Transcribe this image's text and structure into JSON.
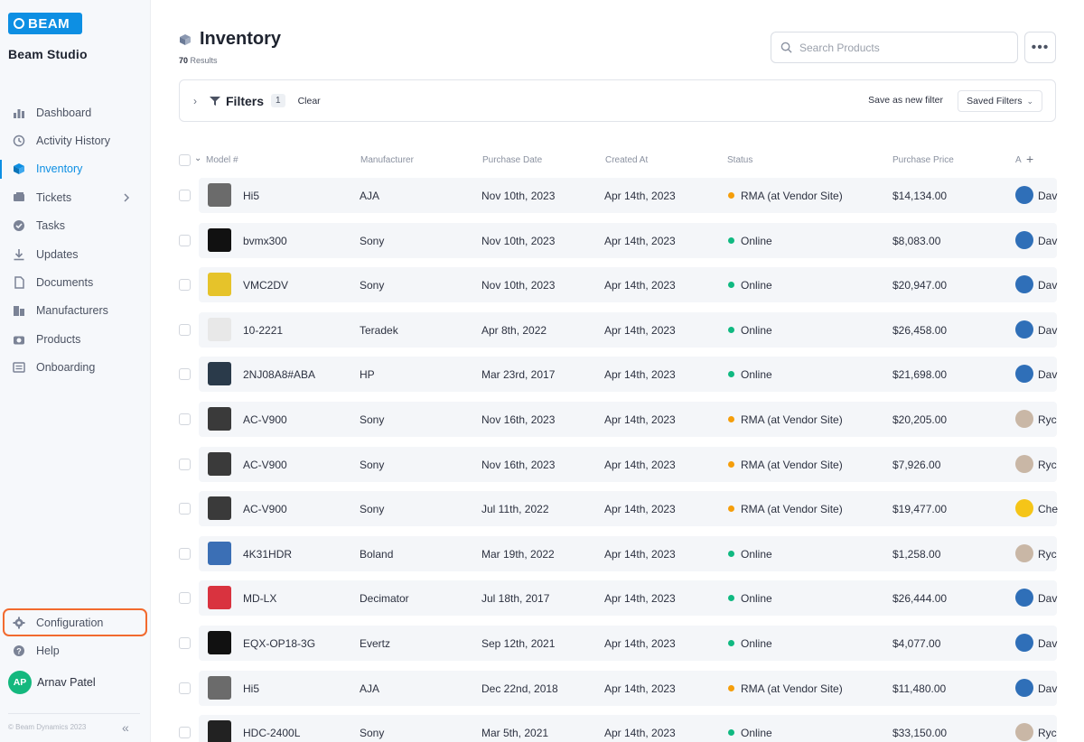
{
  "app": {
    "logo_text": "BEAM",
    "workspace": "Beam Studio",
    "copyright": "© Beam Dynamics 2023"
  },
  "sidebar": {
    "items": [
      {
        "label": "Dashboard",
        "icon": "bar-chart-icon"
      },
      {
        "label": "Activity History",
        "icon": "history-icon"
      },
      {
        "label": "Inventory",
        "icon": "cube-icon",
        "active": true
      },
      {
        "label": "Tickets",
        "icon": "ticket-icon",
        "has_submenu": true
      },
      {
        "label": "Tasks",
        "icon": "check-circle-icon"
      },
      {
        "label": "Updates",
        "icon": "download-icon"
      },
      {
        "label": "Documents",
        "icon": "document-icon"
      },
      {
        "label": "Manufacturers",
        "icon": "building-icon"
      },
      {
        "label": "Products",
        "icon": "camera-icon"
      },
      {
        "label": "Onboarding",
        "icon": "onboarding-icon"
      }
    ],
    "bottom": [
      {
        "label": "Configuration",
        "icon": "gear-icon"
      },
      {
        "label": "Help",
        "icon": "help-icon"
      }
    ],
    "user": {
      "initials": "AP",
      "name": "Arnav Patel"
    }
  },
  "page": {
    "title": "Inventory",
    "results_count": "70",
    "results_label": "Results",
    "search_placeholder": "Search Products"
  },
  "filters": {
    "label": "Filters",
    "count": "1",
    "clear": "Clear",
    "save_as_new": "Save as new filter",
    "saved_filters": "Saved Filters"
  },
  "table": {
    "columns": [
      "Model #",
      "Manufacturer",
      "Purchase Date",
      "Created At",
      "Status",
      "Purchase Price",
      "A"
    ],
    "rows": [
      {
        "model": "Hi5",
        "manufacturer": "AJA",
        "purchase_date": "Nov 10th, 2023",
        "created_at": "Apr 14th, 2023",
        "status": "RMA (at Vendor Site)",
        "status_color": "#f59e0b",
        "price": "$14,134.00",
        "assignee": "Dav",
        "thumb": "#6b6b6b"
      },
      {
        "model": "bvmx300",
        "manufacturer": "Sony",
        "purchase_date": "Nov 10th, 2023",
        "created_at": "Apr 14th, 2023",
        "status": "Online",
        "status_color": "#10b981",
        "price": "$8,083.00",
        "assignee": "Dav",
        "thumb": "#111111"
      },
      {
        "model": "VMC2DV",
        "manufacturer": "Sony",
        "purchase_date": "Nov 10th, 2023",
        "created_at": "Apr 14th, 2023",
        "status": "Online",
        "status_color": "#10b981",
        "price": "$20,947.00",
        "assignee": "Dav",
        "thumb": "#e6c32a"
      },
      {
        "model": "10-2221",
        "manufacturer": "Teradek",
        "purchase_date": "Apr 8th, 2022",
        "created_at": "Apr 14th, 2023",
        "status": "Online",
        "status_color": "#10b981",
        "price": "$26,458.00",
        "assignee": "Dav",
        "thumb": "#e8e8e8"
      },
      {
        "model": "2NJ08A8#ABA",
        "manufacturer": "HP",
        "purchase_date": "Mar 23rd, 2017",
        "created_at": "Apr 14th, 2023",
        "status": "Online",
        "status_color": "#10b981",
        "price": "$21,698.00",
        "assignee": "Dav",
        "thumb": "#2a3a4a"
      },
      {
        "model": "AC-V900",
        "manufacturer": "Sony",
        "purchase_date": "Nov 16th, 2023",
        "created_at": "Apr 14th, 2023",
        "status": "RMA (at Vendor Site)",
        "status_color": "#f59e0b",
        "price": "$20,205.00",
        "assignee": "Ryc",
        "thumb": "#3a3a3a"
      },
      {
        "model": "AC-V900",
        "manufacturer": "Sony",
        "purchase_date": "Nov 16th, 2023",
        "created_at": "Apr 14th, 2023",
        "status": "RMA (at Vendor Site)",
        "status_color": "#f59e0b",
        "price": "$7,926.00",
        "assignee": "Ryc",
        "thumb": "#3a3a3a"
      },
      {
        "model": "AC-V900",
        "manufacturer": "Sony",
        "purchase_date": "Jul 11th, 2022",
        "created_at": "Apr 14th, 2023",
        "status": "RMA (at Vendor Site)",
        "status_color": "#f59e0b",
        "price": "$19,477.00",
        "assignee": "Che",
        "thumb": "#3a3a3a"
      },
      {
        "model": "4K31HDR",
        "manufacturer": "Boland",
        "purchase_date": "Mar 19th, 2022",
        "created_at": "Apr 14th, 2023",
        "status": "Online",
        "status_color": "#10b981",
        "price": "$1,258.00",
        "assignee": "Ryc",
        "thumb": "#3b6fb5"
      },
      {
        "model": "MD-LX",
        "manufacturer": "Decimator",
        "purchase_date": "Jul 18th, 2017",
        "created_at": "Apr 14th, 2023",
        "status": "Online",
        "status_color": "#10b981",
        "price": "$26,444.00",
        "assignee": "Dav",
        "thumb": "#d9333f"
      },
      {
        "model": "EQX-OP18-3G",
        "manufacturer": "Evertz",
        "purchase_date": "Sep 12th, 2021",
        "created_at": "Apr 14th, 2023",
        "status": "Online",
        "status_color": "#10b981",
        "price": "$4,077.00",
        "assignee": "Dav",
        "thumb": "#111111"
      },
      {
        "model": "Hi5",
        "manufacturer": "AJA",
        "purchase_date": "Dec 22nd, 2018",
        "created_at": "Apr 14th, 2023",
        "status": "RMA (at Vendor Site)",
        "status_color": "#f59e0b",
        "price": "$11,480.00",
        "assignee": "Dav",
        "thumb": "#6b6b6b"
      },
      {
        "model": "HDC-2400L",
        "manufacturer": "Sony",
        "purchase_date": "Mar 5th, 2021",
        "created_at": "Apr 14th, 2023",
        "status": "Online",
        "status_color": "#10b981",
        "price": "$33,150.00",
        "assignee": "Ryc",
        "thumb": "#222222"
      }
    ]
  },
  "colors": {
    "accent": "#0d8fe3",
    "highlight": "#f26a2e",
    "online": "#10b981",
    "rma": "#f59e0b"
  }
}
